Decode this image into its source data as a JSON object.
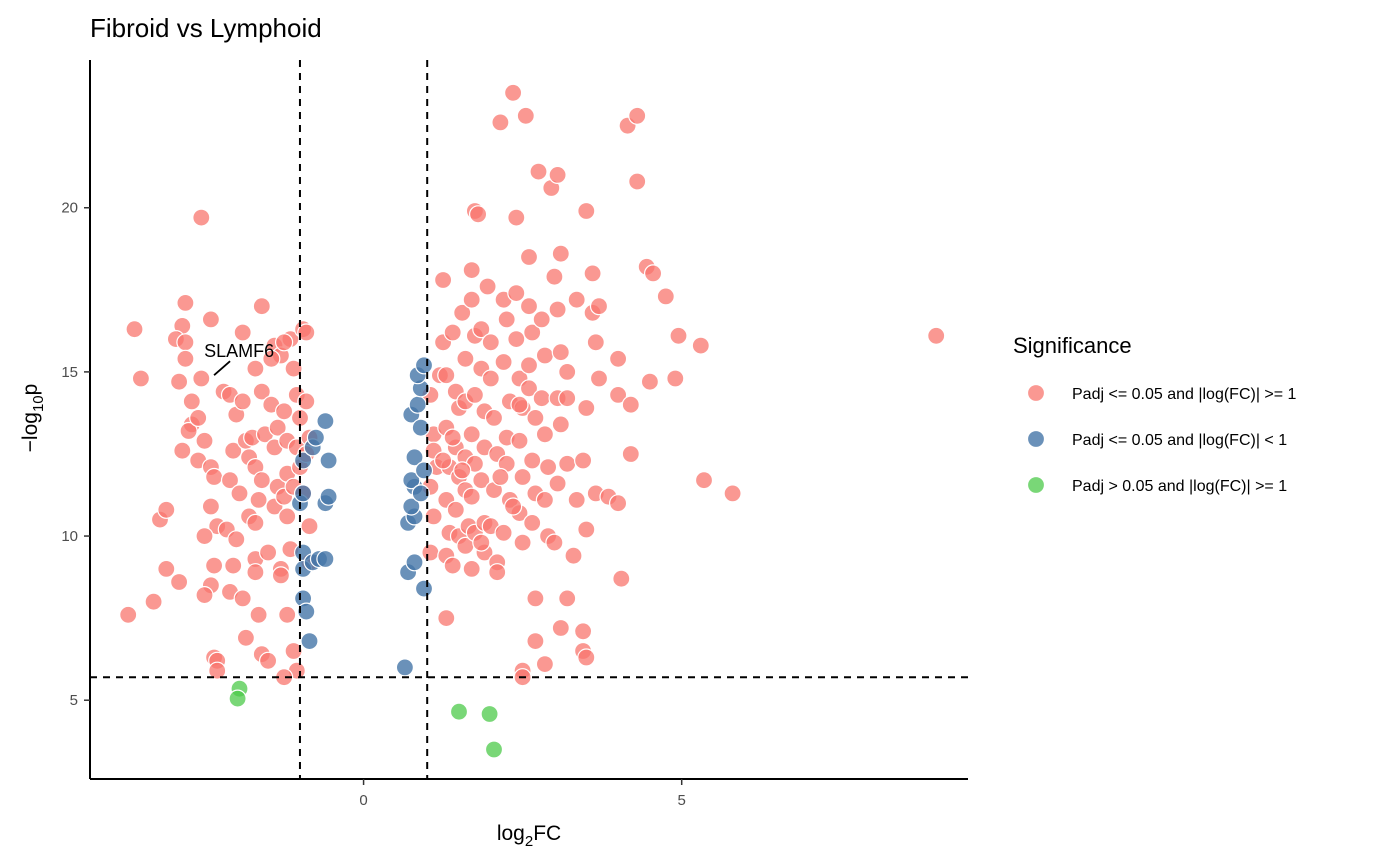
{
  "chart_data": {
    "type": "scatter",
    "title": "Fibroid vs Lymphoid",
    "xlabel_main": "log",
    "xlabel_sub": "2",
    "xlabel_tail": "FC",
    "ylabel_prefix": "−log",
    "ylabel_sub": "10",
    "ylabel_tail": "p",
    "xlim": [
      -4.3,
      9.5
    ],
    "ylim": [
      2.6,
      24.5
    ],
    "x_ticks": [
      0,
      5
    ],
    "y_ticks": [
      5,
      10,
      15,
      20
    ],
    "thresholds": {
      "x": [
        -1,
        1
      ],
      "y": 5.7
    },
    "legend": {
      "title": "Significance",
      "position": "right",
      "entries": [
        {
          "label": "Padj <= 0.05 and |log(FC)| >= 1",
          "color": "#F8766D"
        },
        {
          "label": "Padj <= 0.05 and |log(FC)| < 1",
          "color": "#4575A8"
        },
        {
          "label": "Padj > 0.05 and |log(FC)| >= 1",
          "color": "#4CC94A"
        }
      ]
    },
    "annotation": {
      "label": "SLAMF6",
      "point": [
        -2.35,
        14.9
      ]
    },
    "series": [
      {
        "name": "Padj <= 0.05 and |log(FC)| >= 1",
        "color": "#F8766D",
        "points": [
          [
            -3.6,
            16.3
          ],
          [
            -3.5,
            14.8
          ],
          [
            -3.7,
            7.6
          ],
          [
            -3.2,
            10.5
          ],
          [
            -3.1,
            10.8
          ],
          [
            -3.3,
            8.0
          ],
          [
            -3.1,
            9.0
          ],
          [
            -2.9,
            8.6
          ],
          [
            -2.8,
            17.1
          ],
          [
            -2.85,
            16.4
          ],
          [
            -2.95,
            16.0
          ],
          [
            -2.8,
            15.9
          ],
          [
            -2.8,
            15.4
          ],
          [
            -2.9,
            14.7
          ],
          [
            -2.7,
            14.1
          ],
          [
            -2.7,
            13.4
          ],
          [
            -2.75,
            13.2
          ],
          [
            -2.6,
            13.6
          ],
          [
            -2.6,
            12.3
          ],
          [
            -2.85,
            12.6
          ],
          [
            -2.55,
            19.7
          ],
          [
            -2.55,
            14.8
          ],
          [
            -2.5,
            12.9
          ],
          [
            -2.4,
            16.6
          ],
          [
            -2.4,
            12.1
          ],
          [
            -2.35,
            11.8
          ],
          [
            -2.4,
            10.9
          ],
          [
            -2.3,
            10.3
          ],
          [
            -2.5,
            10.0
          ],
          [
            -2.35,
            9.1
          ],
          [
            -2.4,
            8.5
          ],
          [
            -2.5,
            8.2
          ],
          [
            -2.35,
            6.3
          ],
          [
            -2.3,
            6.2
          ],
          [
            -2.3,
            5.9
          ],
          [
            -2.2,
            14.4
          ],
          [
            -2.1,
            14.3
          ],
          [
            -2.0,
            13.7
          ],
          [
            -2.05,
            12.6
          ],
          [
            -2.1,
            11.7
          ],
          [
            -2.15,
            10.2
          ],
          [
            -2.0,
            9.9
          ],
          [
            -2.05,
            9.1
          ],
          [
            -2.1,
            8.3
          ],
          [
            -1.9,
            16.2
          ],
          [
            -1.9,
            14.1
          ],
          [
            -1.85,
            12.9
          ],
          [
            -1.8,
            12.4
          ],
          [
            -1.95,
            11.3
          ],
          [
            -1.8,
            10.6
          ],
          [
            -1.9,
            8.1
          ],
          [
            -1.85,
            6.9
          ],
          [
            -1.7,
            15.1
          ],
          [
            -1.75,
            13.0
          ],
          [
            -1.7,
            12.1
          ],
          [
            -1.65,
            11.1
          ],
          [
            -1.7,
            10.4
          ],
          [
            -1.7,
            9.3
          ],
          [
            -1.7,
            8.9
          ],
          [
            -1.6,
            17.0
          ],
          [
            -1.6,
            14.4
          ],
          [
            -1.55,
            13.1
          ],
          [
            -1.6,
            11.7
          ],
          [
            -1.5,
            9.5
          ],
          [
            -1.65,
            7.6
          ],
          [
            -1.6,
            6.4
          ],
          [
            -1.5,
            6.2
          ],
          [
            -1.4,
            15.8
          ],
          [
            -1.45,
            14.0
          ],
          [
            -1.35,
            13.3
          ],
          [
            -1.4,
            12.7
          ],
          [
            -1.35,
            11.5
          ],
          [
            -1.4,
            10.9
          ],
          [
            -1.3,
            9.0
          ],
          [
            -1.3,
            8.8
          ],
          [
            -1.3,
            15.5
          ],
          [
            -1.25,
            13.8
          ],
          [
            -1.2,
            12.9
          ],
          [
            -1.2,
            11.9
          ],
          [
            -1.25,
            11.2
          ],
          [
            -1.2,
            10.6
          ],
          [
            -1.15,
            16.0
          ],
          [
            -1.1,
            15.1
          ],
          [
            -1.05,
            14.3
          ],
          [
            -1.0,
            13.6
          ],
          [
            -1.05,
            12.7
          ],
          [
            -1.0,
            12.1
          ],
          [
            -1.1,
            11.5
          ],
          [
            -1.15,
            9.6
          ],
          [
            -1.05,
            5.9
          ],
          [
            -0.95,
            16.3
          ],
          [
            -0.9,
            14.1
          ],
          [
            -0.85,
            13.0
          ],
          [
            -0.9,
            12.5
          ],
          [
            -0.95,
            11.3
          ],
          [
            -0.85,
            10.3
          ],
          [
            -0.85,
            9.2
          ],
          [
            -1.2,
            7.6
          ],
          [
            -1.25,
            5.7
          ],
          [
            -1.1,
            6.5
          ],
          [
            -0.9,
            16.2
          ],
          [
            -1.25,
            15.9
          ],
          [
            -1.45,
            15.4
          ],
          [
            1.05,
            14.3
          ],
          [
            1.1,
            13.1
          ],
          [
            1.1,
            12.6
          ],
          [
            1.05,
            11.5
          ],
          [
            1.1,
            10.6
          ],
          [
            1.05,
            9.5
          ],
          [
            1.15,
            12.1
          ],
          [
            1.2,
            14.9
          ],
          [
            1.25,
            17.8
          ],
          [
            1.25,
            15.9
          ],
          [
            1.3,
            14.9
          ],
          [
            1.3,
            13.3
          ],
          [
            1.35,
            12.1
          ],
          [
            1.3,
            11.1
          ],
          [
            1.35,
            10.1
          ],
          [
            1.3,
            9.4
          ],
          [
            1.4,
            16.2
          ],
          [
            1.45,
            14.4
          ],
          [
            1.5,
            13.9
          ],
          [
            1.45,
            12.7
          ],
          [
            1.5,
            11.8
          ],
          [
            1.45,
            10.8
          ],
          [
            1.5,
            10.0
          ],
          [
            1.4,
            9.1
          ],
          [
            1.3,
            7.5
          ],
          [
            1.55,
            16.8
          ],
          [
            1.6,
            15.4
          ],
          [
            1.6,
            14.1
          ],
          [
            1.6,
            12.4
          ],
          [
            1.6,
            11.4
          ],
          [
            1.65,
            10.3
          ],
          [
            1.6,
            9.7
          ],
          [
            1.7,
            18.1
          ],
          [
            1.7,
            17.2
          ],
          [
            1.75,
            16.1
          ],
          [
            1.75,
            14.3
          ],
          [
            1.7,
            13.1
          ],
          [
            1.75,
            12.2
          ],
          [
            1.7,
            11.2
          ],
          [
            1.75,
            10.1
          ],
          [
            1.7,
            9.0
          ],
          [
            1.75,
            19.9
          ],
          [
            1.8,
            19.8
          ],
          [
            1.85,
            16.3
          ],
          [
            1.85,
            15.1
          ],
          [
            1.9,
            13.8
          ],
          [
            1.9,
            12.7
          ],
          [
            1.85,
            11.7
          ],
          [
            1.9,
            10.4
          ],
          [
            1.9,
            9.5
          ],
          [
            1.95,
            17.6
          ],
          [
            2.0,
            15.9
          ],
          [
            2.0,
            14.8
          ],
          [
            2.05,
            13.6
          ],
          [
            2.1,
            12.5
          ],
          [
            2.05,
            11.4
          ],
          [
            2.0,
            10.3
          ],
          [
            2.1,
            9.2
          ],
          [
            2.1,
            8.9
          ],
          [
            2.15,
            22.6
          ],
          [
            2.2,
            17.2
          ],
          [
            2.25,
            16.6
          ],
          [
            2.2,
            15.3
          ],
          [
            2.3,
            14.1
          ],
          [
            2.25,
            13.0
          ],
          [
            2.25,
            12.2
          ],
          [
            2.3,
            11.1
          ],
          [
            2.2,
            10.1
          ],
          [
            2.35,
            23.5
          ],
          [
            2.4,
            19.7
          ],
          [
            2.4,
            17.4
          ],
          [
            2.4,
            16.0
          ],
          [
            2.45,
            14.8
          ],
          [
            2.5,
            13.9
          ],
          [
            2.45,
            12.9
          ],
          [
            2.5,
            11.8
          ],
          [
            2.45,
            10.7
          ],
          [
            2.5,
            9.8
          ],
          [
            2.5,
            5.9
          ],
          [
            2.55,
            22.8
          ],
          [
            2.6,
            18.5
          ],
          [
            2.6,
            17.0
          ],
          [
            2.65,
            16.2
          ],
          [
            2.6,
            15.2
          ],
          [
            2.6,
            14.5
          ],
          [
            2.7,
            13.6
          ],
          [
            2.65,
            12.3
          ],
          [
            2.7,
            11.3
          ],
          [
            2.65,
            10.4
          ],
          [
            2.7,
            8.1
          ],
          [
            2.7,
            6.8
          ],
          [
            2.75,
            21.1
          ],
          [
            2.8,
            16.6
          ],
          [
            2.85,
            15.5
          ],
          [
            2.8,
            14.2
          ],
          [
            2.85,
            13.1
          ],
          [
            2.9,
            12.1
          ],
          [
            2.85,
            11.1
          ],
          [
            2.9,
            10.0
          ],
          [
            2.85,
            6.1
          ],
          [
            2.95,
            20.6
          ],
          [
            3.0,
            17.9
          ],
          [
            3.05,
            16.9
          ],
          [
            3.1,
            15.6
          ],
          [
            3.05,
            14.2
          ],
          [
            3.1,
            13.4
          ],
          [
            3.05,
            11.6
          ],
          [
            3.0,
            9.8
          ],
          [
            3.1,
            7.2
          ],
          [
            3.05,
            21.0
          ],
          [
            3.1,
            18.6
          ],
          [
            3.2,
            15.0
          ],
          [
            3.2,
            14.2
          ],
          [
            3.2,
            12.2
          ],
          [
            3.2,
            8.1
          ],
          [
            3.35,
            17.2
          ],
          [
            3.35,
            11.1
          ],
          [
            3.3,
            9.4
          ],
          [
            3.5,
            19.9
          ],
          [
            3.5,
            13.9
          ],
          [
            3.45,
            12.3
          ],
          [
            3.5,
            10.2
          ],
          [
            3.45,
            7.1
          ],
          [
            3.45,
            6.5
          ],
          [
            3.5,
            6.3
          ],
          [
            3.6,
            16.8
          ],
          [
            3.65,
            15.9
          ],
          [
            3.7,
            14.8
          ],
          [
            3.65,
            11.3
          ],
          [
            3.7,
            17.0
          ],
          [
            3.6,
            18.0
          ],
          [
            3.85,
            11.2
          ],
          [
            4.0,
            15.4
          ],
          [
            4.0,
            14.3
          ],
          [
            4.0,
            11.0
          ],
          [
            4.05,
            8.7
          ],
          [
            4.15,
            22.5
          ],
          [
            4.2,
            14.0
          ],
          [
            4.2,
            12.5
          ],
          [
            4.3,
            20.8
          ],
          [
            4.3,
            22.8
          ],
          [
            4.45,
            18.2
          ],
          [
            4.5,
            14.7
          ],
          [
            4.55,
            18.0
          ],
          [
            4.75,
            17.3
          ],
          [
            4.9,
            14.8
          ],
          [
            4.95,
            16.1
          ],
          [
            5.3,
            15.8
          ],
          [
            5.35,
            11.7
          ],
          [
            5.8,
            11.3
          ],
          [
            9.0,
            16.1
          ],
          [
            2.5,
            5.7
          ],
          [
            1.55,
            12.0
          ],
          [
            1.25,
            12.3
          ],
          [
            1.4,
            13.0
          ],
          [
            2.45,
            14.0
          ],
          [
            2.15,
            11.8
          ],
          [
            1.85,
            9.8
          ],
          [
            2.35,
            10.9
          ]
        ]
      },
      {
        "name": "Padj <= 0.05 and |log(FC)| < 1",
        "color": "#4575A8",
        "points": [
          [
            -0.95,
            12.3
          ],
          [
            -0.8,
            12.7
          ],
          [
            -0.75,
            13.0
          ],
          [
            -0.6,
            13.5
          ],
          [
            -0.55,
            12.3
          ],
          [
            -1.0,
            11.0
          ],
          [
            -0.95,
            11.3
          ],
          [
            -0.6,
            11.0
          ],
          [
            -0.55,
            11.2
          ],
          [
            -0.95,
            9.5
          ],
          [
            -0.95,
            9.0
          ],
          [
            -0.8,
            9.2
          ],
          [
            -0.7,
            9.3
          ],
          [
            -0.6,
            9.3
          ],
          [
            -0.95,
            8.1
          ],
          [
            -0.9,
            7.7
          ],
          [
            -0.85,
            6.8
          ],
          [
            0.65,
            6.0
          ],
          [
            0.7,
            8.9
          ],
          [
            0.8,
            9.2
          ],
          [
            0.95,
            8.4
          ],
          [
            0.7,
            10.4
          ],
          [
            0.8,
            10.6
          ],
          [
            0.75,
            10.9
          ],
          [
            0.8,
            11.5
          ],
          [
            0.75,
            11.7
          ],
          [
            0.8,
            12.4
          ],
          [
            0.75,
            13.7
          ],
          [
            0.9,
            13.3
          ],
          [
            0.85,
            14.0
          ],
          [
            0.9,
            14.5
          ],
          [
            0.85,
            14.9
          ],
          [
            0.95,
            15.2
          ],
          [
            0.95,
            12.0
          ],
          [
            0.9,
            11.3
          ]
        ]
      },
      {
        "name": "Padj > 0.05 and |log(FC)| >= 1",
        "color": "#4CC94A",
        "points": [
          [
            -1.95,
            5.35
          ],
          [
            -1.98,
            5.05
          ],
          [
            1.5,
            4.65
          ],
          [
            1.98,
            4.58
          ],
          [
            2.05,
            3.5
          ]
        ]
      }
    ]
  }
}
